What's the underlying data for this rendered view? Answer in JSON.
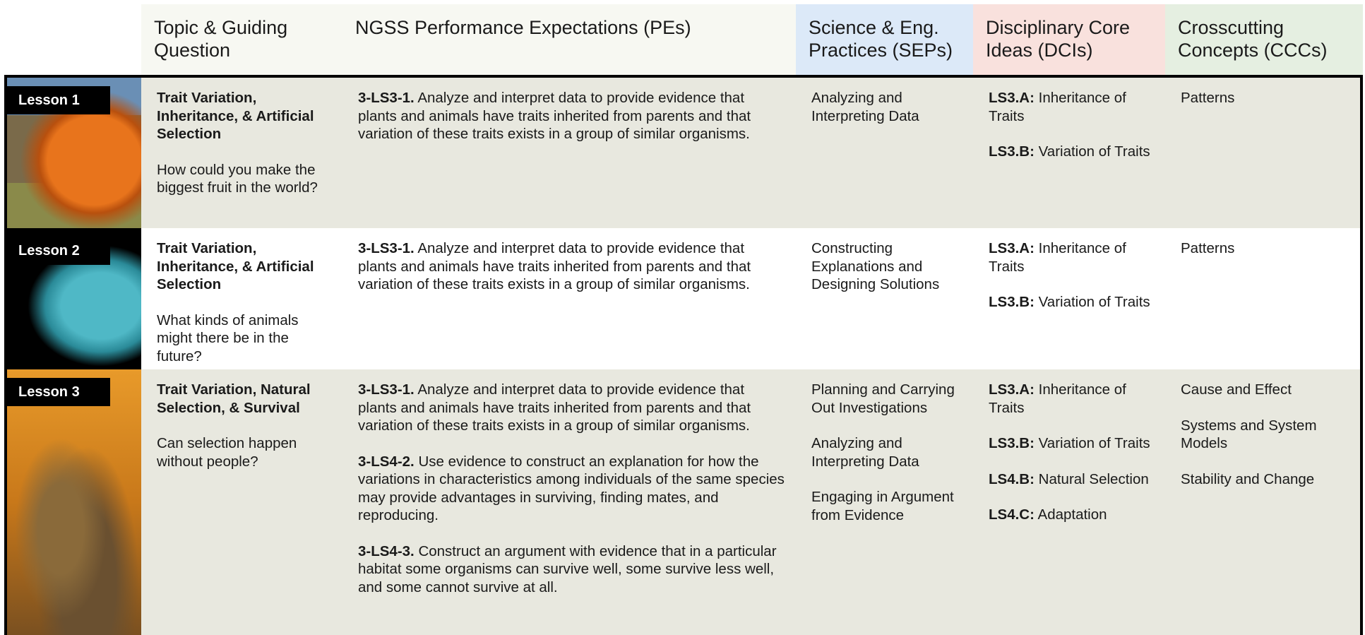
{
  "header": [
    "Topic & Guiding Question",
    "NGSS Performance Expectations (PEs)",
    "Science & Eng. Practices (SEPs)",
    "Disciplinary Core Ideas (DCIs)",
    "Crosscutting Concepts (CCCs)"
  ],
  "rows": [
    {
      "lesson": "Lesson 1",
      "topic": "Trait Variation, Inheritance, & Artificial Selection",
      "question": "How could you make the biggest fruit in the world?",
      "pes": [
        {
          "code": "3-LS3-1.",
          "text": "Analyze and interpret data to provide evidence that plants and animals have traits inherited from parents and that variation of these traits exists in a group of similar organisms."
        }
      ],
      "seps": [
        "Analyzing and Interpreting Data"
      ],
      "dcis": [
        {
          "code": "LS3.A:",
          "text": "Inheritance of Traits"
        },
        {
          "code": "LS3.B:",
          "text": "Variation of Traits"
        }
      ],
      "cccs": [
        "Patterns"
      ]
    },
    {
      "lesson": "Lesson 2",
      "topic": "Trait Variation, Inheritance, & Artificial Selection",
      "question": "What kinds of animals might there be in the future?",
      "pes": [
        {
          "code": "3-LS3-1.",
          "text": "Analyze and interpret data to provide evidence that plants and animals have traits inherited from parents and that variation of these traits exists in a group of similar organisms."
        }
      ],
      "seps": [
        "Constructing Explanations and Designing Solutions"
      ],
      "dcis": [
        {
          "code": "LS3.A:",
          "text": "Inheritance of Traits"
        },
        {
          "code": "LS3.B:",
          "text": "Variation of Traits"
        }
      ],
      "cccs": [
        "Patterns"
      ]
    },
    {
      "lesson": "Lesson 3",
      "topic": "Trait Variation, Natural Selection, & Survival",
      "question": "Can selection happen without people?",
      "pes": [
        {
          "code": "3-LS3-1.",
          "text": "Analyze and interpret data to provide evidence that plants and animals have traits inherited from parents and that variation of these traits exists in a group of similar organisms."
        },
        {
          "code": "3-LS4-2.",
          "text": "Use evidence to construct an explanation for how the variations in characteristics among individuals of the same species may provide advantages in surviving, finding mates, and reproducing."
        },
        {
          "code": "3-LS4-3.",
          "text": "Construct an argument with evidence that in a particular habitat some organisms can survive well, some survive less well, and some cannot survive at all."
        }
      ],
      "seps": [
        "Planning and Carrying Out Investigations",
        "Analyzing and Interpreting Data",
        "Engaging in Argument from Evidence"
      ],
      "dcis": [
        {
          "code": "LS3.A:",
          "text": "Inheritance of Traits"
        },
        {
          "code": "LS3.B:",
          "text": "Variation of Traits"
        },
        {
          "code": "LS4.B:",
          "text": "Natural Selection"
        },
        {
          "code": "LS4.C:",
          "text": "Adaptation"
        }
      ],
      "cccs": [
        "Cause and Effect",
        "Systems and System Models",
        "Stability and Change"
      ]
    }
  ]
}
